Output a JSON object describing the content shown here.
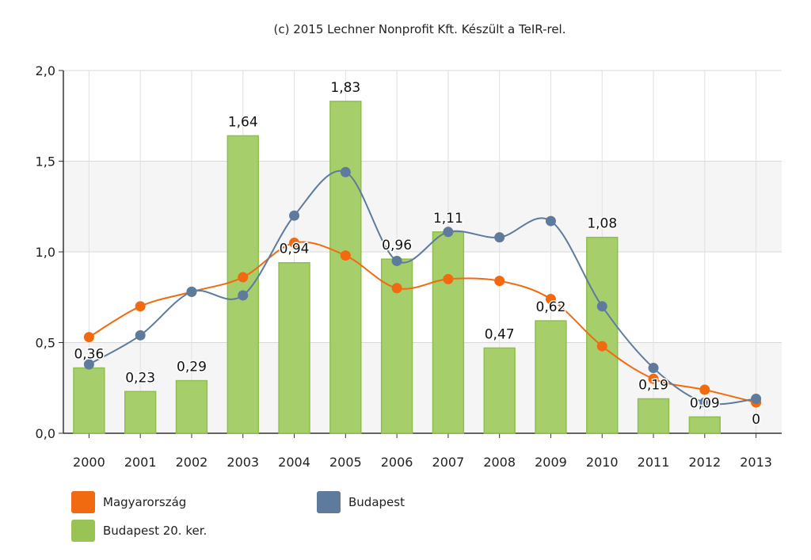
{
  "credit": "(c) 2015 Lechner Nonprofit Kft. Készült a TeIR-rel.",
  "chart_data": {
    "type": "bar",
    "categories": [
      "2000",
      "2001",
      "2002",
      "2003",
      "2004",
      "2005",
      "2006",
      "2007",
      "2008",
      "2009",
      "2010",
      "2011",
      "2012",
      "2013"
    ],
    "y_ticks": [
      "0,0",
      "0,5",
      "1,0",
      "1,5",
      "2,0"
    ],
    "ylim": [
      0,
      2.0
    ],
    "grid": true,
    "legend_position": "bottom",
    "series": [
      {
        "name": "Budapest 20. ker.",
        "kind": "bar",
        "color": "#a6cf6b",
        "values": [
          0.36,
          0.23,
          0.29,
          1.64,
          0.94,
          1.83,
          0.96,
          1.11,
          0.47,
          0.62,
          1.08,
          0.19,
          0.09,
          0
        ],
        "labels": [
          "0,36",
          "0,23",
          "0,29",
          "1,64",
          "0,94",
          "1,83",
          "0,96",
          "1,11",
          "0,47",
          "0,62",
          "1,08",
          "0,19",
          "0,09",
          "0"
        ]
      },
      {
        "name": "Magyarország",
        "kind": "line",
        "color": "#f26a10",
        "values": [
          0.53,
          0.7,
          0.78,
          0.86,
          1.05,
          0.98,
          0.8,
          0.85,
          0.84,
          0.74,
          0.48,
          0.3,
          0.24,
          0.17
        ]
      },
      {
        "name": "Budapest",
        "kind": "line",
        "color": "#5e7a9c",
        "values": [
          0.38,
          0.54,
          0.78,
          0.76,
          1.2,
          1.44,
          0.95,
          1.11,
          1.08,
          1.17,
          0.7,
          0.36,
          0.17,
          0.19
        ]
      }
    ],
    "legend": [
      {
        "name": "Magyarország",
        "color": "#f26a10"
      },
      {
        "name": "Budapest",
        "color": "#5e7a9c"
      },
      {
        "name": "Budapest 20. ker.",
        "color": "#99c455"
      }
    ]
  }
}
